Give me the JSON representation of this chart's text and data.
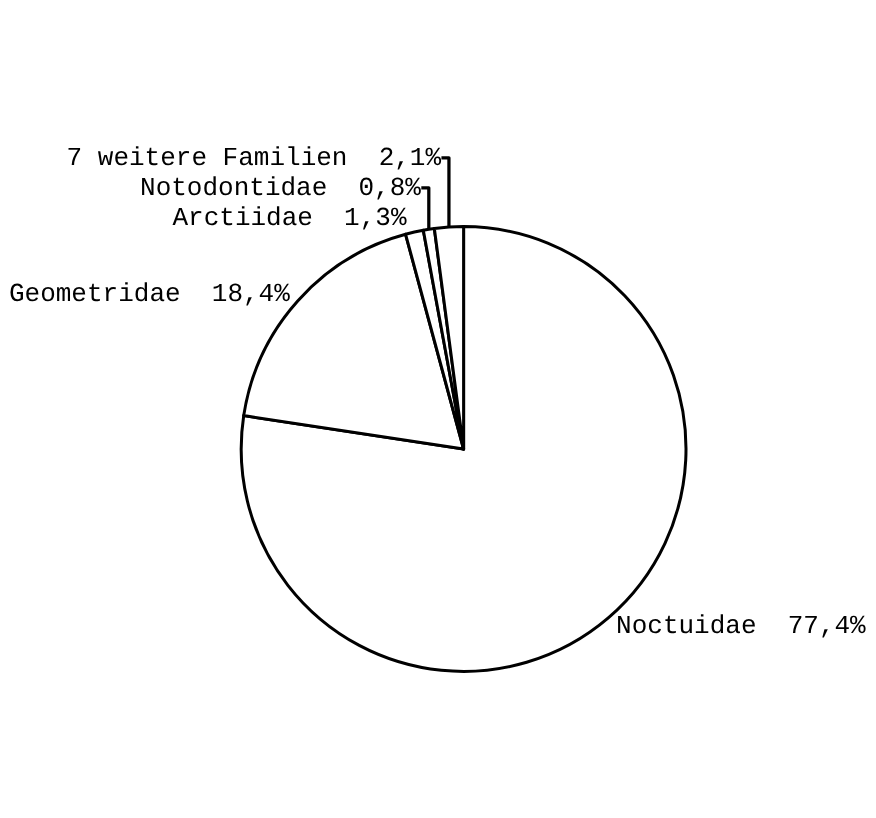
{
  "chart_data": {
    "type": "pie",
    "categories": [
      "Noctuidae",
      "Geometridae",
      "Arctiidae",
      "Notodontidae",
      "7 weitere Familien"
    ],
    "values": [
      77.4,
      18.4,
      1.3,
      0.8,
      2.1
    ],
    "value_labels": [
      "77,4%",
      "18,4%",
      "1,3%",
      "0,8%",
      "2,1%"
    ],
    "colors": [
      "#ffffff",
      "#ffffff",
      "#ffffff",
      "#ffffff",
      "#ffffff"
    ],
    "legend": false
  }
}
